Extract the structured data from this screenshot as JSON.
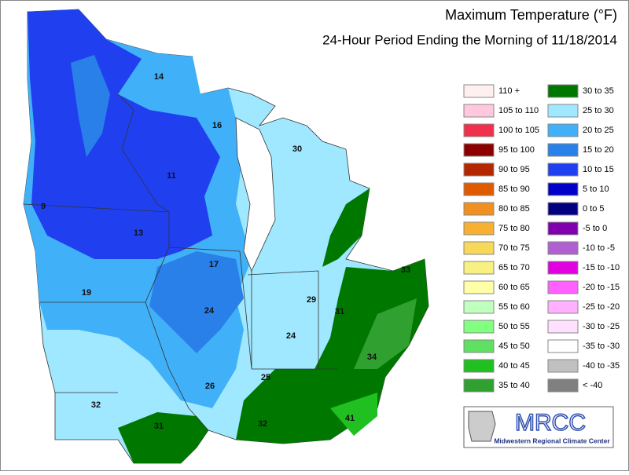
{
  "title": "Maximum Temperature (°F)",
  "subtitle": "24-Hour Period Ending the Morning of 11/18/2014",
  "legend": [
    {
      "label": "110 +",
      "color": "#fff0f0"
    },
    {
      "label": "105 to 110",
      "color": "#ffc8dc"
    },
    {
      "label": "100 to 105",
      "color": "#f0304c"
    },
    {
      "label": "95 to 100",
      "color": "#8c0000"
    },
    {
      "label": "90 to 95",
      "color": "#b42800"
    },
    {
      "label": "85 to 90",
      "color": "#e05a00"
    },
    {
      "label": "80 to 85",
      "color": "#f09020"
    },
    {
      "label": "75 to 80",
      "color": "#f8b030"
    },
    {
      "label": "70 to 75",
      "color": "#f8d858"
    },
    {
      "label": "65 to 70",
      "color": "#f8f080"
    },
    {
      "label": "60 to 65",
      "color": "#ffffa8"
    },
    {
      "label": "55 to 60",
      "color": "#c0ffc0"
    },
    {
      "label": "50 to 55",
      "color": "#80ff80"
    },
    {
      "label": "45 to 50",
      "color": "#60e060"
    },
    {
      "label": "40 to 45",
      "color": "#20c020"
    },
    {
      "label": "35 to 40",
      "color": "#30a030"
    },
    {
      "label": "30 to 35",
      "color": "#007800"
    },
    {
      "label": "25 to 30",
      "color": "#a0e8ff"
    },
    {
      "label": "20 to 25",
      "color": "#40b0f8"
    },
    {
      "label": "15 to 20",
      "color": "#2880e8"
    },
    {
      "label": "10 to 15",
      "color": "#2040f0"
    },
    {
      "label": "5 to 10",
      "color": "#0000c8"
    },
    {
      "label": "0 to 5",
      "color": "#000080"
    },
    {
      "label": "-5 to 0",
      "color": "#8000b0"
    },
    {
      "label": "-10 to -5",
      "color": "#b060d0"
    },
    {
      "label": "-15 to -10",
      "color": "#e000e0"
    },
    {
      "label": "-20 to -15",
      "color": "#ff60ff"
    },
    {
      "label": "-25 to -20",
      "color": "#ffb0ff"
    },
    {
      "label": "-30 to -25",
      "color": "#ffe0ff"
    },
    {
      "label": "-35 to -30",
      "color": "#ffffff"
    },
    {
      "label": "-40 to -35",
      "color": "#c0c0c0"
    },
    {
      "label": "< -40",
      "color": "#808080"
    }
  ],
  "map_labels": [
    14,
    16,
    30,
    11,
    9,
    13,
    17,
    33,
    19,
    29,
    31,
    24,
    24,
    34,
    26,
    25,
    32,
    31,
    32,
    41
  ],
  "logo": {
    "name": "MRCC",
    "caption": "Midwestern Regional Climate Center"
  }
}
